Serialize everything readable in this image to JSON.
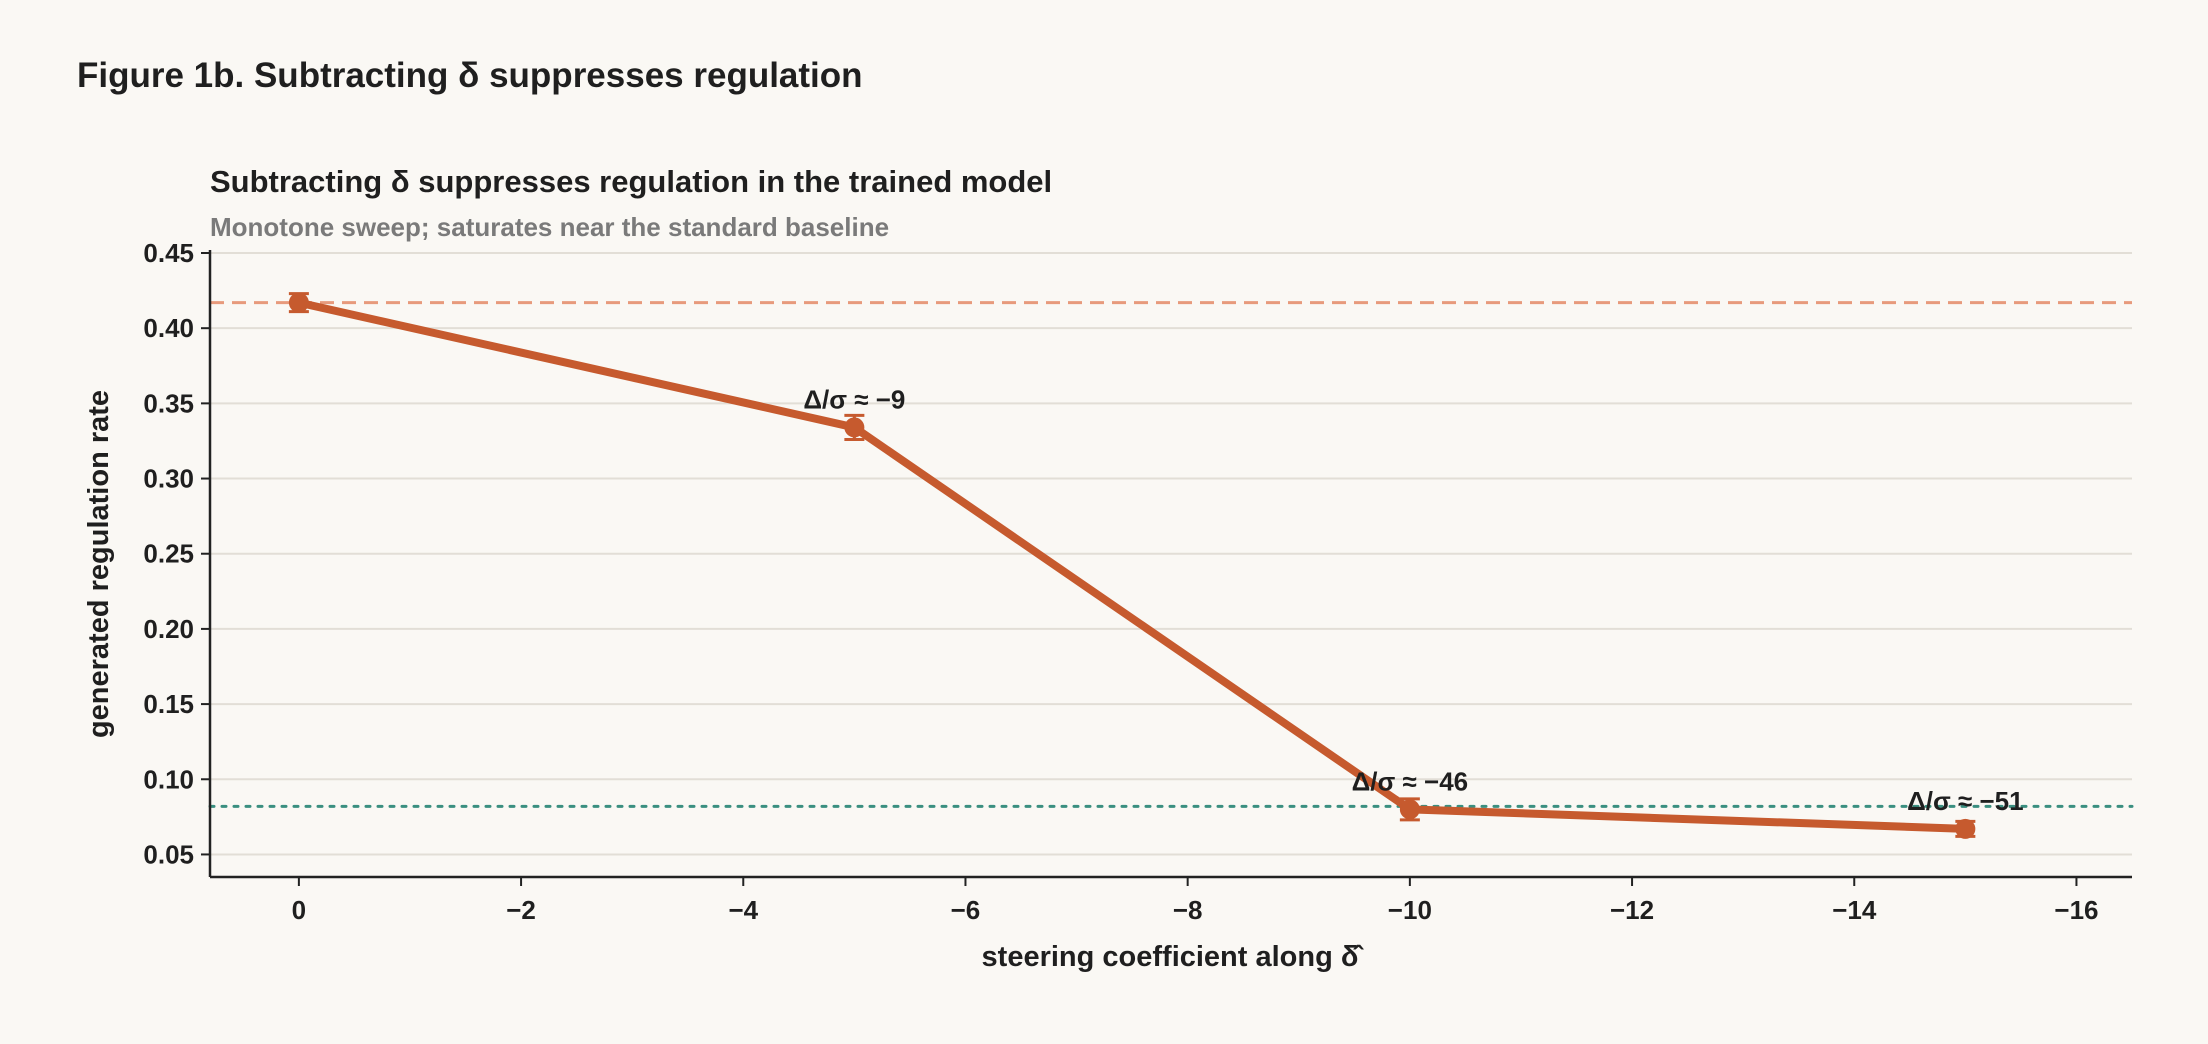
{
  "figure": {
    "title": "Figure 1b. Subtracting δ suppresses regulation"
  },
  "chart_data": {
    "type": "line",
    "title": "Subtracting δ suppresses regulation in the trained model",
    "subtitle": "Monotone sweep; saturates near the standard baseline",
    "xlabel": "steering coefficient along δ̂",
    "ylabel": "generated regulation rate",
    "xlim": [
      0.8,
      -16.5
    ],
    "ylim": [
      0.035,
      0.452
    ],
    "x_ticks": [
      0,
      -2,
      -4,
      -6,
      -8,
      -10,
      -12,
      -14,
      -16
    ],
    "x_tick_labels": [
      "0",
      "−2",
      "−4",
      "−6",
      "−8",
      "−10",
      "−12",
      "−14",
      "−16"
    ],
    "y_ticks": [
      0.05,
      0.1,
      0.15,
      0.2,
      0.25,
      0.3,
      0.35,
      0.4,
      0.45
    ],
    "y_tick_labels": [
      "0.05",
      "0.10",
      "0.15",
      "0.20",
      "0.25",
      "0.30",
      "0.35",
      "0.40",
      "0.45"
    ],
    "grid": "horizontal",
    "series": [
      {
        "color": "#c65a2e",
        "points": [
          {
            "x": 0,
            "y": 0.417,
            "err": 0.006
          },
          {
            "x": -5,
            "y": 0.334,
            "err": 0.008
          },
          {
            "x": -10,
            "y": 0.08,
            "err": 0.007
          },
          {
            "x": -15,
            "y": 0.067,
            "err": 0.005
          }
        ]
      }
    ],
    "reference_lines": [
      {
        "y": 0.417,
        "style": "dashed",
        "color": "#e79a7c"
      },
      {
        "y": 0.082,
        "style": "dotted",
        "color": "#3a8f80"
      }
    ],
    "annotations": [
      {
        "x": -5,
        "y": 0.334,
        "text": "Δ/σ ≈ −9"
      },
      {
        "x": -10,
        "y": 0.08,
        "text": "Δ/σ ≈ −46"
      },
      {
        "x": -15,
        "y": 0.067,
        "text": "Δ/σ ≈ −51"
      }
    ]
  }
}
